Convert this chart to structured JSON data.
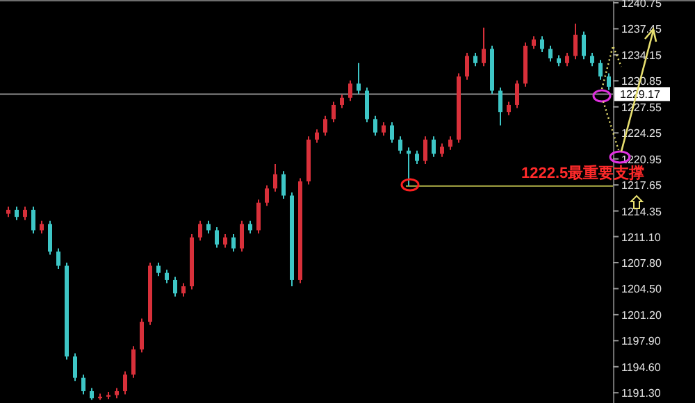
{
  "chart_data": {
    "type": "candlestick",
    "categories": [
      null,
      null,
      null,
      null,
      null,
      null,
      null,
      null,
      null,
      null,
      null,
      null,
      null,
      null,
      null,
      null,
      null,
      null,
      null,
      null,
      null,
      null,
      null,
      null,
      null,
      null,
      null,
      null,
      null,
      null,
      null,
      null,
      null,
      null,
      null,
      null,
      null,
      null,
      null,
      null,
      null,
      null,
      null,
      null,
      null,
      null,
      null,
      null,
      null,
      null,
      null,
      null,
      null,
      null,
      null,
      null,
      null,
      null,
      null,
      null,
      null,
      null,
      null,
      null,
      null,
      null,
      null,
      null,
      null,
      null,
      null,
      null,
      null
    ],
    "ohlc": [
      [
        1214.0,
        1214.9,
        1213.6,
        1214.5
      ],
      [
        1214.5,
        1214.9,
        1213.2,
        1213.6
      ],
      [
        1213.6,
        1214.9,
        1213.2,
        1214.5
      ],
      [
        1214.5,
        1214.9,
        1211.5,
        1211.9
      ],
      [
        1211.9,
        1213.1,
        1211.5,
        1212.7
      ],
      [
        1212.7,
        1213.1,
        1208.8,
        1209.2
      ],
      [
        1209.2,
        1209.6,
        1207.0,
        1207.4
      ],
      [
        1207.4,
        1207.8,
        1195.5,
        1195.9
      ],
      [
        1195.9,
        1196.3,
        1192.8,
        1193.2
      ],
      [
        1193.2,
        1193.6,
        1191.1,
        1191.5
      ],
      [
        1191.5,
        1191.9,
        1190.4,
        1190.6
      ],
      [
        1190.6,
        1191.2,
        1190.4,
        1190.8
      ],
      [
        1190.8,
        1191.4,
        1190.5,
        1191.0
      ],
      [
        1191.0,
        1191.9,
        1190.6,
        1191.5
      ],
      [
        1191.5,
        1194.0,
        1191.1,
        1193.6
      ],
      [
        1193.6,
        1197.2,
        1193.2,
        1196.8
      ],
      [
        1196.8,
        1200.7,
        1196.4,
        1200.3
      ],
      [
        1200.3,
        1207.8,
        1199.9,
        1207.4
      ],
      [
        1207.4,
        1207.8,
        1206.1,
        1206.5
      ],
      [
        1206.5,
        1206.9,
        1205.2,
        1205.6
      ],
      [
        1205.6,
        1206.0,
        1203.5,
        1203.9
      ],
      [
        1203.9,
        1205.2,
        1203.5,
        1204.8
      ],
      [
        1204.8,
        1211.4,
        1204.4,
        1211.0
      ],
      [
        1211.0,
        1213.1,
        1210.6,
        1212.7
      ],
      [
        1212.7,
        1213.1,
        1211.5,
        1211.9
      ],
      [
        1211.9,
        1212.3,
        1209.7,
        1210.1
      ],
      [
        1210.1,
        1211.4,
        1209.7,
        1211.0
      ],
      [
        1211.0,
        1211.4,
        1209.2,
        1209.6
      ],
      [
        1209.6,
        1213.1,
        1209.2,
        1212.7
      ],
      [
        1212.7,
        1213.1,
        1211.5,
        1211.9
      ],
      [
        1211.9,
        1215.8,
        1211.5,
        1215.4
      ],
      [
        1215.4,
        1217.6,
        1215.0,
        1217.2
      ],
      [
        1217.2,
        1220.3,
        1216.8,
        1219.0
      ],
      [
        1219.0,
        1219.4,
        1215.9,
        1216.3
      ],
      [
        1216.3,
        1216.7,
        1204.8,
        1205.6
      ],
      [
        1205.6,
        1218.5,
        1205.2,
        1218.1
      ],
      [
        1218.1,
        1223.8,
        1217.7,
        1223.4
      ],
      [
        1223.4,
        1224.7,
        1223.0,
        1224.3
      ],
      [
        1224.3,
        1226.4,
        1223.9,
        1226.0
      ],
      [
        1226.0,
        1228.2,
        1225.6,
        1227.8
      ],
      [
        1227.8,
        1229.1,
        1227.4,
        1228.7
      ],
      [
        1228.7,
        1230.9,
        1228.3,
        1230.5
      ],
      [
        1230.5,
        1233.1,
        1229.2,
        1229.6
      ],
      [
        1229.6,
        1230.0,
        1225.6,
        1226.0
      ],
      [
        1226.0,
        1226.4,
        1223.9,
        1224.3
      ],
      [
        1224.3,
        1225.6,
        1223.9,
        1225.2
      ],
      [
        1225.2,
        1225.6,
        1223.0,
        1223.4
      ],
      [
        1223.4,
        1223.8,
        1221.6,
        1222.0
      ],
      [
        1222.0,
        1222.4,
        1217.5,
        1221.6
      ],
      [
        1221.6,
        1222.0,
        1220.3,
        1220.7
      ],
      [
        1220.7,
        1223.8,
        1220.3,
        1223.4
      ],
      [
        1223.4,
        1223.8,
        1221.2,
        1221.6
      ],
      [
        1221.6,
        1222.9,
        1221.2,
        1222.5
      ],
      [
        1222.5,
        1223.8,
        1222.1,
        1223.4
      ],
      [
        1223.4,
        1231.8,
        1223.0,
        1231.4
      ],
      [
        1231.4,
        1234.4,
        1231.0,
        1234.0
      ],
      [
        1234.0,
        1234.4,
        1232.7,
        1233.1
      ],
      [
        1233.1,
        1237.6,
        1232.7,
        1234.9
      ],
      [
        1234.9,
        1235.3,
        1229.2,
        1229.6
      ],
      [
        1229.6,
        1230.0,
        1225.2,
        1226.9
      ],
      [
        1226.9,
        1228.2,
        1226.5,
        1227.8
      ],
      [
        1227.8,
        1230.9,
        1227.4,
        1230.5
      ],
      [
        1230.5,
        1235.7,
        1230.1,
        1235.3
      ],
      [
        1235.3,
        1236.5,
        1234.9,
        1236.1
      ],
      [
        1236.1,
        1236.5,
        1234.5,
        1234.9
      ],
      [
        1234.9,
        1235.3,
        1233.3,
        1233.7
      ],
      [
        1233.7,
        1234.1,
        1232.7,
        1233.1
      ],
      [
        1233.1,
        1234.4,
        1232.7,
        1234.0
      ],
      [
        1234.0,
        1238.1,
        1233.6,
        1236.7
      ],
      [
        1236.7,
        1237.1,
        1233.6,
        1234.0
      ],
      [
        1234.0,
        1234.4,
        1232.7,
        1233.1
      ],
      [
        1233.1,
        1233.5,
        1231.0,
        1231.4
      ],
      [
        1231.4,
        1231.8,
        1229.7,
        1230.1
      ]
    ],
    "ylim": [
      1190.0,
      1241.1
    ],
    "yticks": [
      1240.75,
      1237.45,
      1234.15,
      1230.85,
      1227.55,
      1224.25,
      1220.95,
      1217.65,
      1214.35,
      {
        "value": 1211.1,
        "label": "1211.10"
      },
      {
        "value": 1207.8,
        "label": "1207.80"
      },
      {
        "value": 1204.5,
        "label": "1204.50"
      },
      {
        "value": 1201.2,
        "label": "1201.20"
      },
      {
        "value": 1197.9,
        "label": "1197.90"
      },
      {
        "value": 1194.6,
        "label": "1194.60"
      },
      {
        "value": 1191.3,
        "label": "1191.30"
      }
    ],
    "ref_lines": [
      {
        "axis": "y",
        "value": 1229.17,
        "label": "1229.17",
        "color": "#8c8c8c"
      },
      {
        "axis": "y",
        "value": 1217.5,
        "color": "#b4b44a"
      }
    ],
    "annotations": [
      "1222.5最重要支撑"
    ]
  }
}
